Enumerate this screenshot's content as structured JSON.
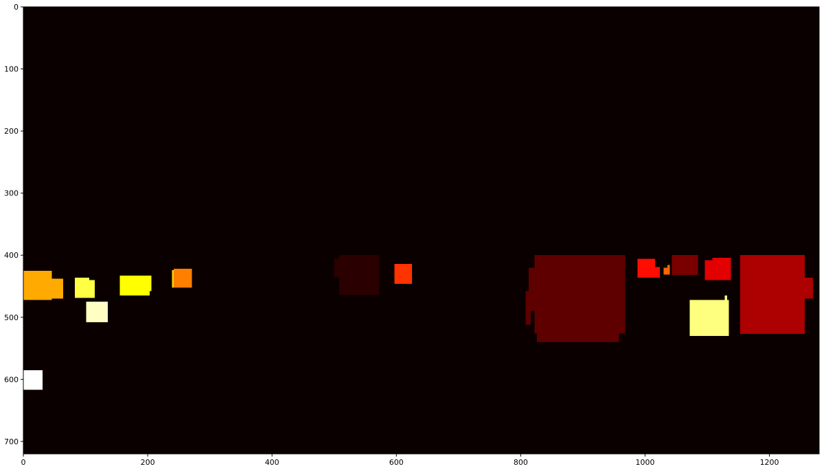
{
  "chart_data": {
    "type": "heatmap",
    "title": "",
    "xlabel": "",
    "ylabel": "",
    "xlim": [
      0,
      1280
    ],
    "ylim": [
      720,
      0
    ],
    "xticks": [
      0,
      200,
      400,
      600,
      800,
      1000,
      1200
    ],
    "yticks": [
      0,
      100,
      200,
      300,
      400,
      500,
      600,
      700
    ],
    "grid": false,
    "colormap": "hot",
    "background_color": "#0b0000",
    "regions": [
      {
        "x0": 0,
        "x1": 46,
        "y0": 425,
        "y1": 472,
        "color": "#ffaa00"
      },
      {
        "x0": 40,
        "x1": 64,
        "y0": 438,
        "y1": 470,
        "color": "#ffaa00"
      },
      {
        "x0": 83,
        "x1": 106,
        "y0": 436,
        "y1": 469,
        "color": "#ffff44"
      },
      {
        "x0": 100,
        "x1": 115,
        "y0": 440,
        "y1": 469,
        "color": "#ffff44"
      },
      {
        "x0": 101,
        "x1": 136,
        "y0": 475,
        "y1": 508,
        "color": "#ffffc4"
      },
      {
        "x0": 155,
        "x1": 203,
        "y0": 433,
        "y1": 465,
        "color": "#ffff00"
      },
      {
        "x0": 199,
        "x1": 206,
        "y0": 433,
        "y1": 458,
        "color": "#ffff00"
      },
      {
        "x0": 239,
        "x1": 242,
        "y0": 424,
        "y1": 452,
        "color": "#ffd400"
      },
      {
        "x0": 242,
        "x1": 271,
        "y0": 422,
        "y1": 452,
        "color": "#ff7f00"
      },
      {
        "x0": 0,
        "x1": 31,
        "y0": 585,
        "y1": 617,
        "color": "#ffffff"
      },
      {
        "x0": 500,
        "x1": 510,
        "y0": 405,
        "y1": 435,
        "color": "#2a0000"
      },
      {
        "x0": 508,
        "x1": 572,
        "y0": 400,
        "y1": 464,
        "color": "#2a0000"
      },
      {
        "x0": 597,
        "x1": 625,
        "y0": 414,
        "y1": 446,
        "color": "#ff3300"
      },
      {
        "x0": 813,
        "x1": 824,
        "y0": 420,
        "y1": 490,
        "color": "#5e0000"
      },
      {
        "x0": 808,
        "x1": 816,
        "y0": 458,
        "y1": 512,
        "color": "#5e0000"
      },
      {
        "x0": 822,
        "x1": 968,
        "y0": 400,
        "y1": 526,
        "color": "#5e0000"
      },
      {
        "x0": 826,
        "x1": 958,
        "y0": 520,
        "y1": 540,
        "color": "#5e0000"
      },
      {
        "x0": 988,
        "x1": 1016,
        "y0": 406,
        "y1": 436,
        "color": "#ff0d00"
      },
      {
        "x0": 1012,
        "x1": 1024,
        "y0": 419,
        "y1": 436,
        "color": "#ff0d00"
      },
      {
        "x0": 1030,
        "x1": 1040,
        "y0": 420,
        "y1": 431,
        "color": "#ff6600"
      },
      {
        "x0": 1036,
        "x1": 1040,
        "y0": 416,
        "y1": 420,
        "color": "#ff6600"
      },
      {
        "x0": 1043,
        "x1": 1085,
        "y0": 400,
        "y1": 432,
        "color": "#7a0000"
      },
      {
        "x0": 1096,
        "x1": 1113,
        "y0": 408,
        "y1": 440,
        "color": "#e20000"
      },
      {
        "x0": 1108,
        "x1": 1138,
        "y0": 404,
        "y1": 440,
        "color": "#e20000"
      },
      {
        "x0": 1072,
        "x1": 1135,
        "y0": 472,
        "y1": 530,
        "color": "#ffff7f"
      },
      {
        "x0": 1128,
        "x1": 1132,
        "y0": 465,
        "y1": 472,
        "color": "#ffff7f"
      },
      {
        "x0": 1153,
        "x1": 1257,
        "y0": 400,
        "y1": 527,
        "color": "#ad0000"
      },
      {
        "x0": 1248,
        "x1": 1270,
        "y0": 436,
        "y1": 470,
        "color": "#ad0000"
      }
    ]
  }
}
